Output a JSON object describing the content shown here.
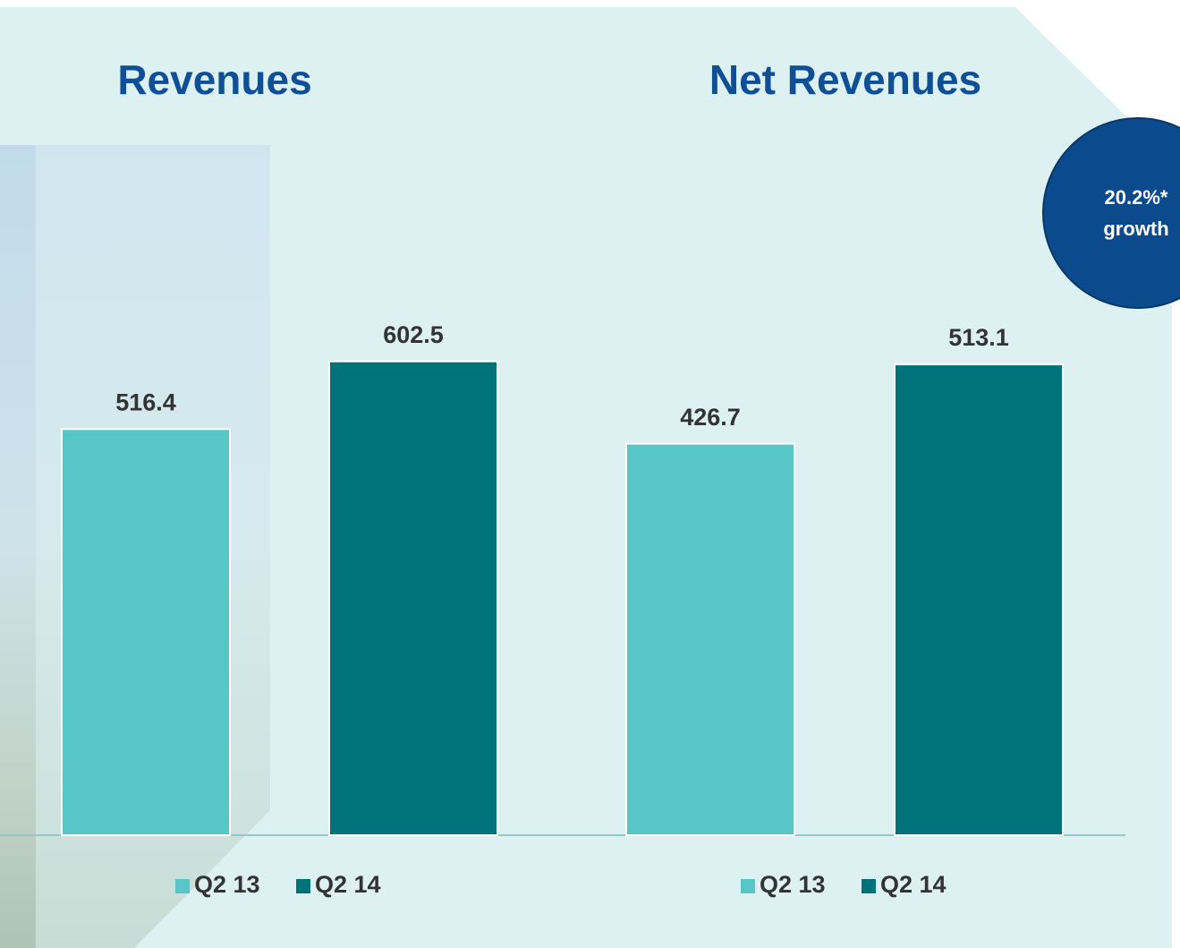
{
  "chart_data": [
    {
      "type": "bar",
      "title": "Revenues",
      "categories": [
        "Q2 13",
        "Q2 14"
      ],
      "values": [
        516.4,
        602.5
      ],
      "colors": [
        "#56c7c6",
        "#00737a"
      ],
      "ylim": [
        0,
        700
      ],
      "legend": "bottom"
    },
    {
      "type": "bar",
      "title": "Net Revenues",
      "categories": [
        "Q2 13",
        "Q2 14"
      ],
      "values": [
        426.7,
        513.1
      ],
      "colors": [
        "#56c7c6",
        "#00737a"
      ],
      "ylim": [
        0,
        600
      ],
      "legend": "bottom",
      "annotation": [
        "20.2%*",
        "growth"
      ]
    }
  ]
}
